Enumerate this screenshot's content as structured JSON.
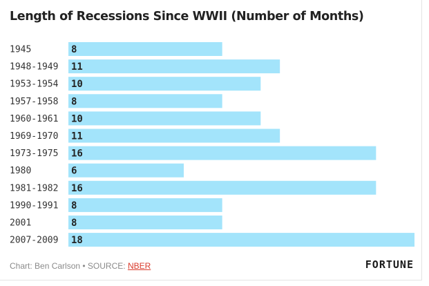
{
  "chart_data": {
    "type": "bar",
    "orientation": "horizontal",
    "title": "Length of Recessions Since WWII (Number of Months)",
    "xlabel": "",
    "ylabel": "",
    "categories": [
      "1945",
      "1948-1949",
      "1953-1954",
      "1957-1958",
      "1960-1961",
      "1969-1970",
      "1973-1975",
      "1980",
      "1981-1982",
      "1990-1991",
      "2001",
      "2007-2009"
    ],
    "values": [
      8,
      11,
      10,
      8,
      10,
      11,
      16,
      6,
      16,
      8,
      8,
      18
    ],
    "xlim": [
      0,
      18
    ],
    "grid": false,
    "legend": "none",
    "bar_color": "#a3e4fb",
    "label_color": "#222222"
  },
  "footer": {
    "credit": "Chart: Ben Carlson • SOURCE: ",
    "source_link": "NBER"
  },
  "brand": {
    "name": "FORTUNE"
  }
}
